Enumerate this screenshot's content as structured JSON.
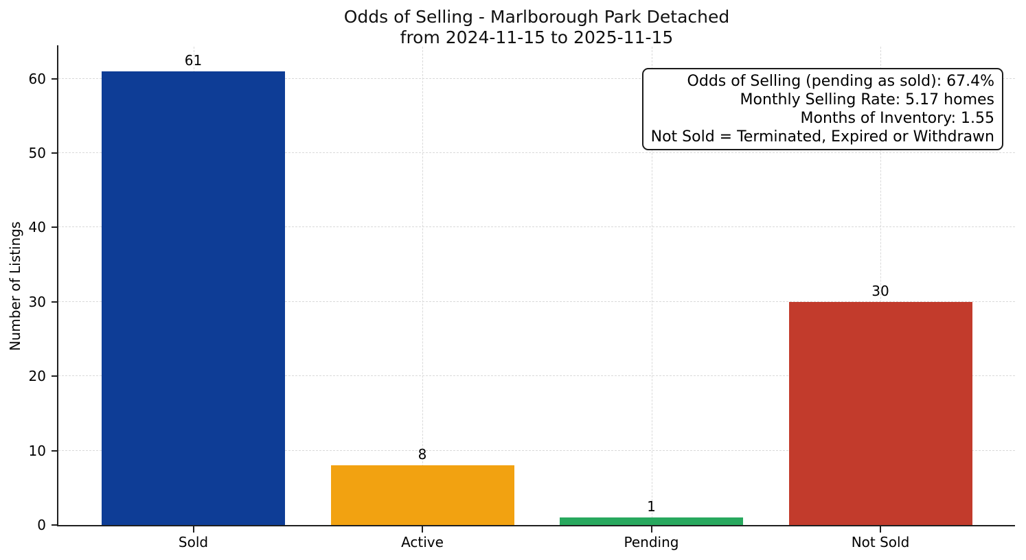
{
  "chart_data": {
    "type": "bar",
    "title": "Odds of Selling - Marlborough Park Detached\nfrom 2024-11-15 to 2025-11-15",
    "title_lines": [
      "Odds of Selling - Marlborough Park Detached",
      "from 2024-11-15 to 2025-11-15"
    ],
    "categories": [
      "Sold",
      "Active",
      "Pending",
      "Not Sold"
    ],
    "values": [
      61,
      8,
      1,
      30
    ],
    "bar_colors": [
      "#0e3d96",
      "#f2a211",
      "#28a85e",
      "#c23b2c"
    ],
    "xlabel": "",
    "ylabel": "Number of Listings",
    "ylim": [
      0,
      64.3
    ],
    "yticks": [
      0,
      10,
      20,
      30,
      40,
      50,
      60
    ],
    "grid": {
      "horizontal": true,
      "vertical": true,
      "style": "dashed",
      "color": "#d9d9d9"
    },
    "legend": "none",
    "annotation": {
      "position": "top-right",
      "lines": [
        "Odds of Selling (pending as sold): 67.4%",
        "Monthly Selling Rate: 5.17 homes",
        "Months of Inventory: 1.55",
        "Not Sold = Terminated, Expired or Withdrawn"
      ]
    },
    "colors": {
      "axis": "#1f1f1f",
      "text": "#000000",
      "background": "#ffffff"
    }
  }
}
